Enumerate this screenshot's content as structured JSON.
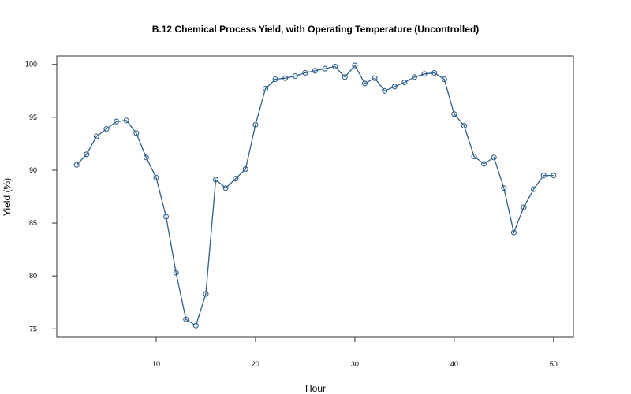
{
  "chart_data": {
    "type": "line",
    "title": "B.12  Chemical Process Yield, with Operating Temperature (Uncontrolled)",
    "xlabel": "Hour",
    "ylabel": "Yield (%)",
    "xlim": [
      0,
      52
    ],
    "ylim": [
      74.2,
      100.8
    ],
    "xticks": [
      10,
      20,
      30,
      40,
      50
    ],
    "yticks": [
      75,
      80,
      85,
      90,
      95,
      100
    ],
    "grid": false,
    "line_color": "#2f5f8a",
    "markers": "open-circle",
    "x": [
      2,
      3,
      4,
      5,
      6,
      7,
      8,
      9,
      10,
      11,
      12,
      13,
      14,
      15,
      16,
      17,
      18,
      19,
      20,
      21,
      22,
      23,
      24,
      25,
      26,
      27,
      28,
      29,
      30,
      31,
      32,
      33,
      34,
      35,
      36,
      37,
      38,
      39,
      40,
      41,
      42,
      43,
      44,
      45,
      46,
      47,
      48,
      49,
      50
    ],
    "y": [
      90.5,
      91.5,
      93.2,
      93.9,
      94.6,
      94.7,
      93.5,
      91.2,
      89.3,
      85.6,
      80.3,
      75.9,
      75.3,
      78.3,
      89.1,
      88.3,
      89.2,
      90.1,
      94.3,
      97.7,
      98.6,
      98.7,
      98.9,
      99.2,
      99.4,
      99.6,
      99.8,
      98.8,
      99.9,
      98.2,
      98.7,
      97.5,
      97.9,
      98.3,
      98.8,
      99.1,
      99.2,
      98.6,
      95.3,
      94.2,
      91.3,
      90.6,
      91.2,
      88.3,
      84.1,
      86.5,
      88.2,
      89.5,
      89.5
    ]
  }
}
